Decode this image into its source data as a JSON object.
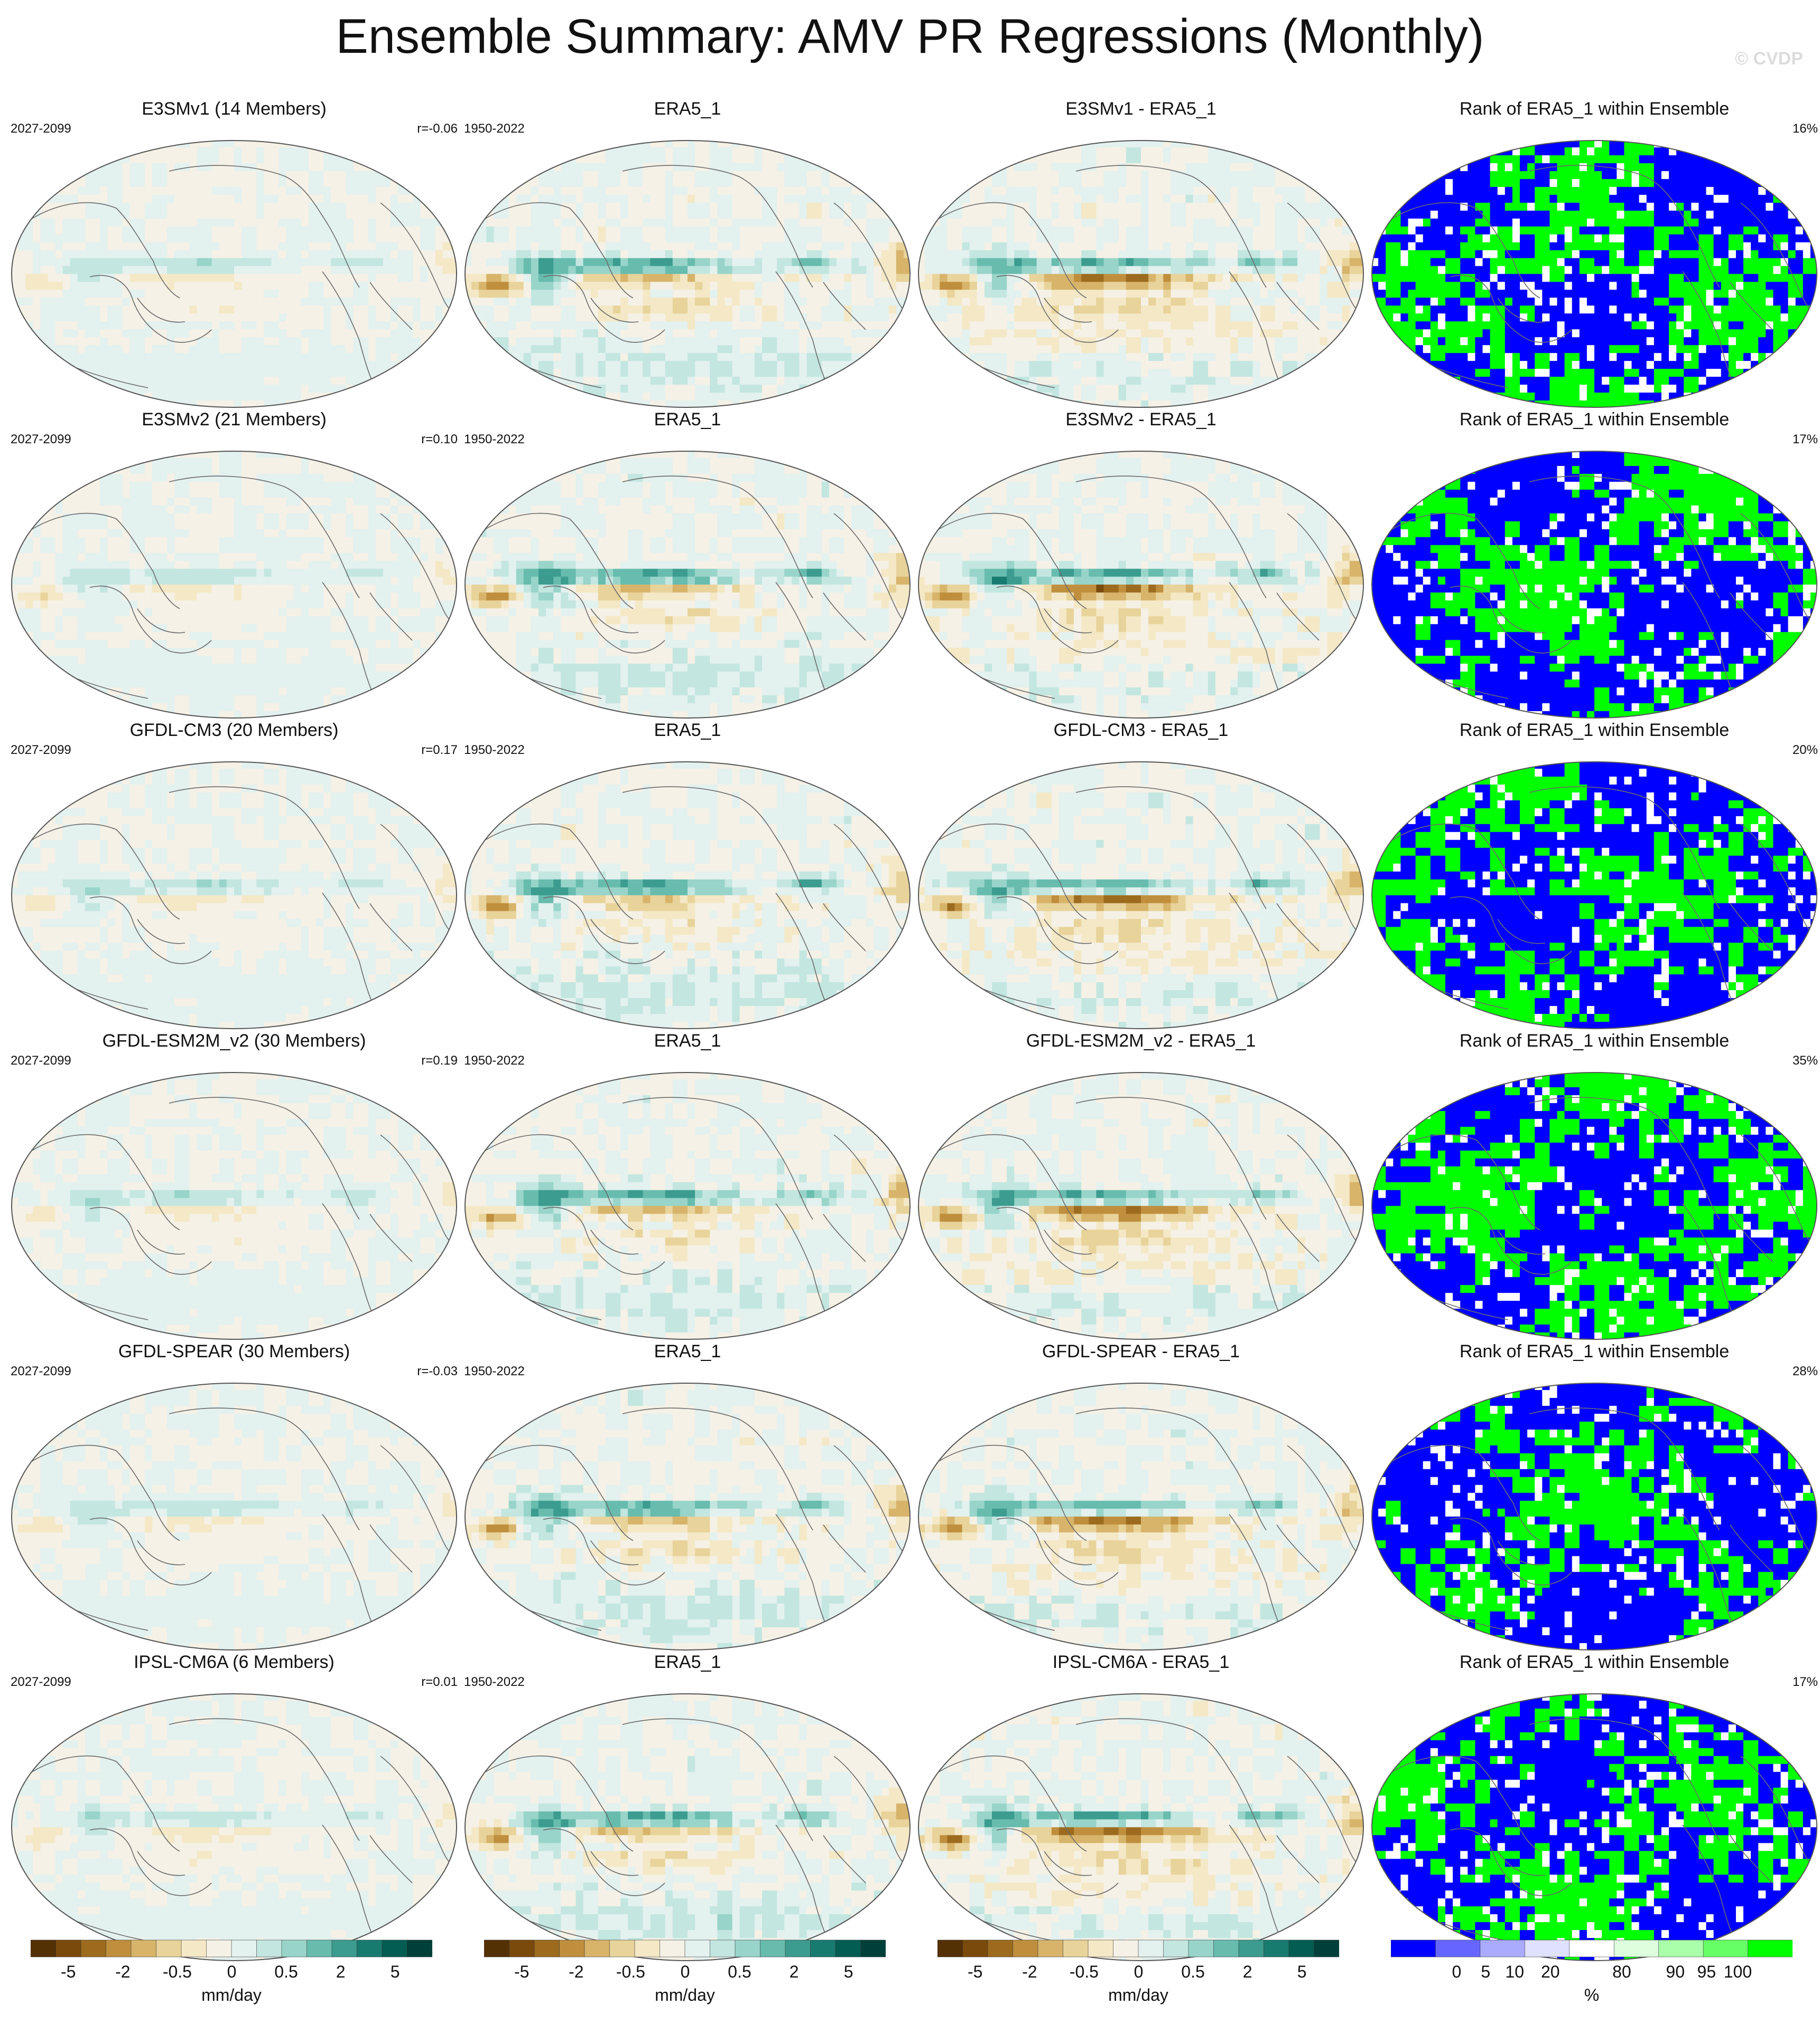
{
  "figure": {
    "title": "Ensemble Summary: AMV PR Regressions (Monthly)",
    "watermark": "© CVDP"
  },
  "rows": [
    {
      "model": {
        "title": "E3SMv1 (14 Members)",
        "years": "2027-2099",
        "corr": "r=-0.06"
      },
      "obs": {
        "title": "ERA5_1",
        "years": "1950-2022"
      },
      "diff": {
        "title": "E3SMv1 - ERA5_1"
      },
      "rank": {
        "title": "Rank of ERA5_1 within Ensemble",
        "pct": "16%"
      }
    },
    {
      "model": {
        "title": "E3SMv2 (21 Members)",
        "years": "2027-2099",
        "corr": "r=0.10"
      },
      "obs": {
        "title": "ERA5_1",
        "years": "1950-2022"
      },
      "diff": {
        "title": "E3SMv2 - ERA5_1"
      },
      "rank": {
        "title": "Rank of ERA5_1 within Ensemble",
        "pct": "17%"
      }
    },
    {
      "model": {
        "title": "GFDL-CM3 (20 Members)",
        "years": "2027-2099",
        "corr": "r=0.17"
      },
      "obs": {
        "title": "ERA5_1",
        "years": "1950-2022"
      },
      "diff": {
        "title": "GFDL-CM3 - ERA5_1"
      },
      "rank": {
        "title": "Rank of ERA5_1 within Ensemble",
        "pct": "20%"
      }
    },
    {
      "model": {
        "title": "GFDL-ESM2M_v2 (30 Members)",
        "years": "2027-2099",
        "corr": "r=0.19"
      },
      "obs": {
        "title": "ERA5_1",
        "years": "1950-2022"
      },
      "diff": {
        "title": "GFDL-ESM2M_v2 - ERA5_1"
      },
      "rank": {
        "title": "Rank of ERA5_1 within Ensemble",
        "pct": "35%"
      }
    },
    {
      "model": {
        "title": "GFDL-SPEAR (30 Members)",
        "years": "2027-2099",
        "corr": "r=-0.03"
      },
      "obs": {
        "title": "ERA5_1",
        "years": "1950-2022"
      },
      "diff": {
        "title": "GFDL-SPEAR - ERA5_1"
      },
      "rank": {
        "title": "Rank of ERA5_1 within Ensemble",
        "pct": "28%"
      }
    },
    {
      "model": {
        "title": "IPSL-CM6A (6 Members)",
        "years": "2027-2099",
        "corr": "r=0.01"
      },
      "obs": {
        "title": "ERA5_1",
        "years": "1950-2022"
      },
      "diff": {
        "title": "IPSL-CM6A - ERA5_1"
      },
      "rank": {
        "title": "Rank of ERA5_1 within Ensemble",
        "pct": "17%"
      }
    }
  ],
  "colorbars": {
    "precip": {
      "unit": "mm/day",
      "ticks": [
        "-5",
        "-2",
        "-0.5",
        "0",
        "0.5",
        "2",
        "5"
      ],
      "colors": [
        "#543005",
        "#7a4a0c",
        "#9c6b1e",
        "#bf8f3e",
        "#d7b46a",
        "#e8d39a",
        "#f4e8c6",
        "#f5f1e6",
        "#e3f1ef",
        "#c3e6e0",
        "#98d4c9",
        "#67bcae",
        "#3b9c8f",
        "#187b70",
        "#035d52",
        "#00403a"
      ]
    },
    "rank": {
      "unit": "%",
      "ticks": [
        "0",
        "5",
        "10",
        "20",
        "80",
        "90",
        "95",
        "100"
      ],
      "colors": [
        "#0000ff",
        "#6666ff",
        "#aaaaff",
        "#e0e0ff",
        "#ffffff",
        "#ddffdd",
        "#aaffaa",
        "#66ff66",
        "#00ff00"
      ]
    }
  },
  "colors": {
    "rank_low": "#0000ff",
    "rank_high": "#00ff00",
    "ocean_bg": "#f4f1e8",
    "wet": "#3a9c8f",
    "dry": "#b98032"
  }
}
